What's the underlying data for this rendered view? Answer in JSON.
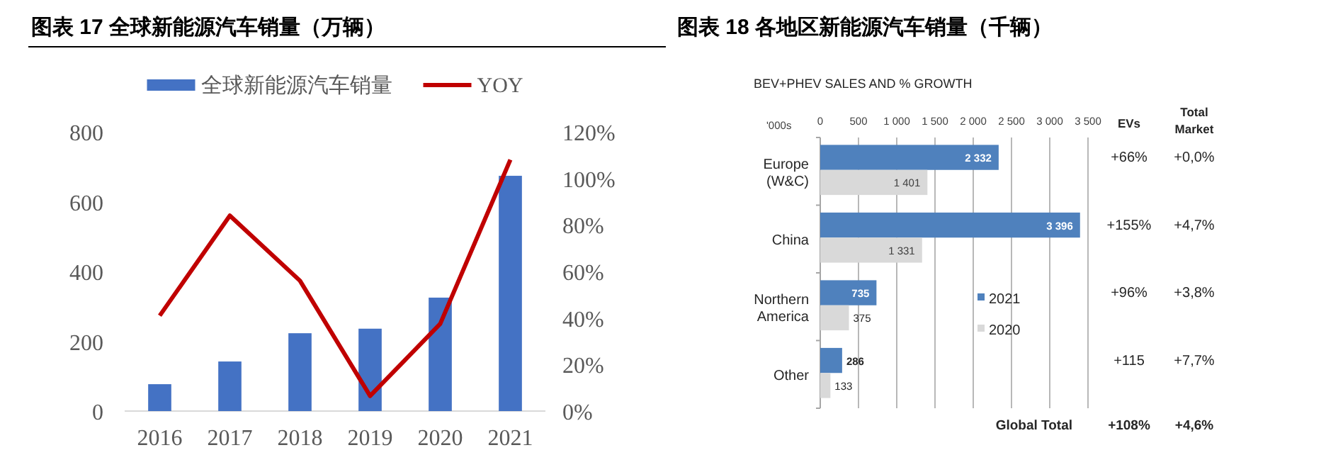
{
  "chart_data": [
    {
      "type": "bar",
      "title": "图表 17 全球新能源汽车销量（万辆）",
      "categories": [
        "2016",
        "2017",
        "2018",
        "2019",
        "2020",
        "2021"
      ],
      "series": [
        {
          "name": "全球新能源汽车销量",
          "color": "#4472c4",
          "values": [
            77,
            142,
            223,
            236,
            325,
            674
          ]
        },
        {
          "name": "YOY",
          "type": "line",
          "axis": "y2",
          "color": "#c00000",
          "values": [
            41,
            84,
            56,
            6.5,
            37.5,
            108
          ]
        }
      ],
      "ylim": [
        0,
        800
      ],
      "yticks": [
        0,
        200,
        400,
        600,
        800
      ],
      "y2lim": [
        0,
        120
      ],
      "y2ticks": [
        {
          "value": 0,
          "label": "0%"
        },
        {
          "value": 20,
          "label": "20%"
        },
        {
          "value": 40,
          "label": "40%"
        },
        {
          "value": 60,
          "label": "60%"
        },
        {
          "value": 80,
          "label": "80%"
        },
        {
          "value": 100,
          "label": "100%"
        },
        {
          "value": 120,
          "label": "120%"
        }
      ],
      "legend": "top"
    },
    {
      "type": "bar",
      "orientation": "horizontal",
      "title": "图表 18 各地区新能源汽车销量（千辆）",
      "subtitle": "BEV+PHEV SALES AND % GROWTH",
      "xlabel": "'000s",
      "categories": [
        "Europe (W&C)",
        "China",
        "Northern America",
        "Other"
      ],
      "series": [
        {
          "name": "2021",
          "color": "#4f81bd",
          "values": [
            2332,
            3396,
            735,
            286
          ],
          "value_labels": [
            "2 332",
            "3 396",
            "735",
            "286"
          ]
        },
        {
          "name": "2020",
          "color": "#d9d9d9",
          "values": [
            1401,
            1331,
            375,
            133
          ],
          "value_labels": [
            "1 401",
            "1 331",
            "375",
            "133"
          ]
        }
      ],
      "xlim": [
        0,
        3500
      ],
      "xticks": [
        0,
        500,
        {
          "value": 1000,
          "label": "1 000"
        },
        {
          "value": 1500,
          "label": "1 500"
        },
        {
          "value": 2000,
          "label": "2 000"
        },
        {
          "value": 2500,
          "label": "2 500"
        },
        {
          "value": 3000,
          "label": "3 000"
        },
        {
          "value": 3500,
          "label": "3 500"
        }
      ],
      "grid": "x",
      "legend": "bottom right",
      "annotations": [
        "EVs",
        "Total Market",
        "+66%",
        "+0,0%",
        "+155%",
        "+4,7%",
        "+96%",
        "+3,8%",
        "+115",
        "+7,7%",
        "Global Total",
        "+108%",
        "+4,6%"
      ]
    }
  ]
}
